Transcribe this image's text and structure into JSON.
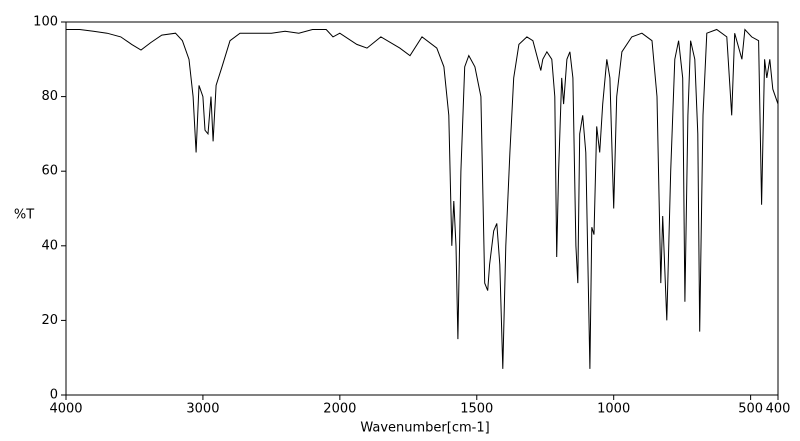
{
  "chart_data": {
    "type": "line",
    "xlabel": "Wavenumber[cm-1]",
    "ylabel": "%T",
    "xlim": [
      4000,
      400
    ],
    "x_scale_break": 2000,
    "xticks": [
      4000,
      3000,
      2000,
      1500,
      1000,
      500,
      400
    ],
    "ylim": [
      0,
      100
    ],
    "yticks": [
      0,
      20,
      40,
      60,
      80,
      100
    ],
    "color": "#000000",
    "x": [
      4000,
      3900,
      3800,
      3700,
      3600,
      3520,
      3452,
      3380,
      3300,
      3200,
      3150,
      3102,
      3072,
      3050,
      3029,
      3000,
      2985,
      2963,
      2941,
      2926,
      2904,
      2861,
      2802,
      2729,
      2600,
      2500,
      2400,
      2300,
      2200,
      2100,
      2050,
      2000,
      1938,
      1901,
      1850,
      1781,
      1744,
      1700,
      1646,
      1620,
      1602,
      1591,
      1584,
      1576,
      1569,
      1558,
      1544,
      1529,
      1507,
      1485,
      1471,
      1460,
      1453,
      1438,
      1427,
      1416,
      1405,
      1394,
      1379,
      1365,
      1346,
      1317,
      1295,
      1277,
      1266,
      1259,
      1244,
      1226,
      1215,
      1208,
      1201,
      1190,
      1183,
      1171,
      1160,
      1149,
      1138,
      1131,
      1124,
      1113,
      1102,
      1087,
      1080,
      1072,
      1062,
      1051,
      1040,
      1025,
      1014,
      1000,
      989,
      970,
      934,
      897,
      860,
      842,
      828,
      821,
      806,
      792,
      777,
      763,
      748,
      740,
      729,
      719,
      704,
      693,
      686,
      674,
      660,
      624,
      587,
      569,
      558,
      532,
      521,
      496,
      471,
      460,
      449,
      441,
      430,
      419,
      400
    ],
    "values": [
      98,
      98,
      97.5,
      97,
      96,
      94,
      92.5,
      94.5,
      96.5,
      97,
      95,
      90,
      80,
      65,
      83,
      80,
      71,
      70,
      80,
      68,
      83,
      88,
      95,
      97,
      97,
      97,
      97.5,
      97,
      98,
      98,
      96,
      97,
      94,
      93,
      96,
      93,
      91,
      96,
      93,
      88,
      75,
      40,
      52,
      40,
      15,
      60,
      88,
      91,
      88,
      80,
      30,
      28,
      35,
      44,
      46,
      35,
      7,
      40,
      65,
      85,
      94,
      96,
      95,
      90,
      87,
      90,
      92,
      90,
      80,
      37,
      60,
      85,
      78,
      90,
      92,
      85,
      40,
      30,
      70,
      75,
      65,
      7,
      45,
      43,
      72,
      65,
      78,
      90,
      85,
      50,
      80,
      92,
      96,
      97,
      95,
      80,
      30,
      48,
      20,
      60,
      90,
      95,
      85,
      25,
      75,
      95,
      90,
      70,
      17,
      75,
      97,
      98,
      96,
      75,
      97,
      90,
      98,
      96,
      95,
      51,
      90,
      85,
      90,
      82,
      78
    ]
  }
}
